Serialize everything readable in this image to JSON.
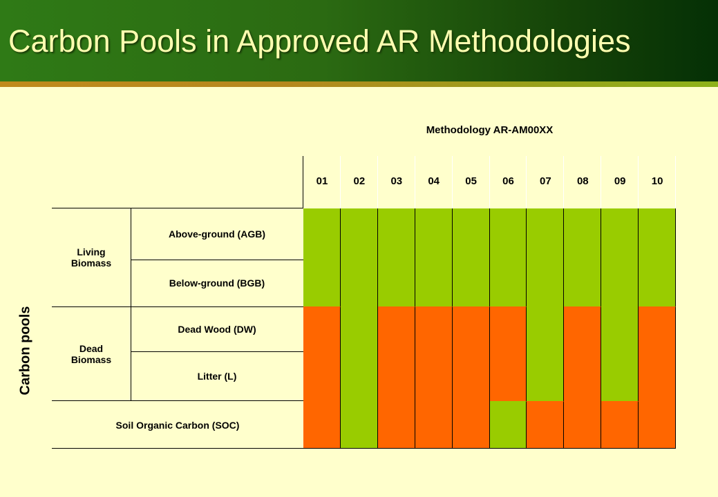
{
  "title": "Carbon Pools in Approved AR Methodologies",
  "colors": {
    "included": "#99CC00",
    "excluded": "#FF6600",
    "background": "#FFFFCC",
    "title": "#FFFFB0"
  },
  "table": {
    "methodology_label": "Methodology AR-AM00XX",
    "carbon_pools_label": "Carbon pools",
    "columns": [
      "01",
      "02",
      "03",
      "04",
      "05",
      "06",
      "07",
      "08",
      "09",
      "10"
    ],
    "groups": [
      {
        "label": "Living\nBiomass"
      },
      {
        "label": "Dead\nBiomass"
      }
    ],
    "rows": [
      {
        "label": "Above-ground (AGB)",
        "values": [
          "green",
          "green",
          "green",
          "green",
          "green",
          "green",
          "green",
          "green",
          "green",
          "green"
        ]
      },
      {
        "label": "Below-ground (BGB)",
        "values": [
          "green",
          "green",
          "green",
          "green",
          "green",
          "green",
          "green",
          "green",
          "green",
          "green"
        ]
      },
      {
        "label": "Dead Wood (DW)",
        "values": [
          "orange",
          "green",
          "orange",
          "orange",
          "orange",
          "orange",
          "green",
          "orange",
          "green",
          "orange"
        ]
      },
      {
        "label": "Litter (L)",
        "values": [
          "orange",
          "green",
          "orange",
          "orange",
          "orange",
          "orange",
          "green",
          "orange",
          "green",
          "orange"
        ]
      },
      {
        "label": "Soil Organic Carbon (SOC)",
        "values": [
          "orange",
          "green",
          "orange",
          "orange",
          "orange",
          "green",
          "orange",
          "orange",
          "orange",
          "orange"
        ]
      }
    ]
  }
}
